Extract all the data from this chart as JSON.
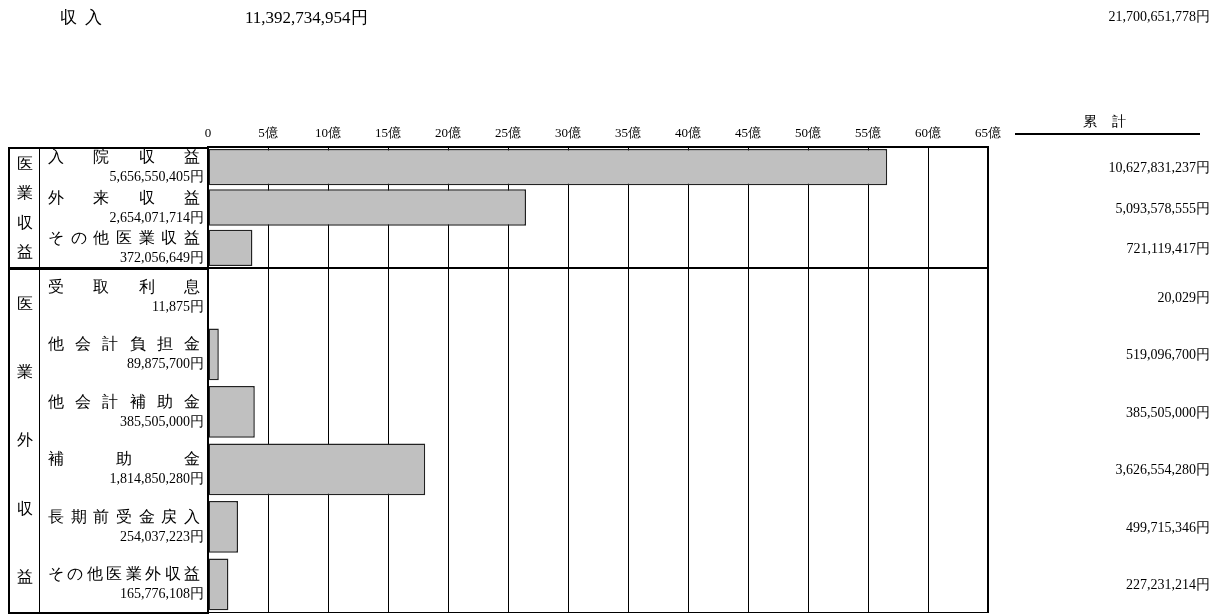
{
  "chart_data": [
    {
      "type": "bar",
      "orientation": "horizontal",
      "title": "収 入",
      "subtitle": "11,392,734,954円",
      "ylabel": "医業収益",
      "categories": [
        "入院収益",
        "外来収益",
        "その他医業収益"
      ],
      "values": [
        56.6,
        26.5,
        3.7
      ],
      "color": "#c0c0c0",
      "xlim": [
        0,
        65
      ],
      "xticks": [
        0,
        {
          "value": 5,
          "label": "5億"
        },
        {
          "value": 10,
          "label": "10億"
        },
        {
          "value": 15,
          "label": "15億"
        },
        {
          "value": 20,
          "label": "20億"
        },
        {
          "value": 25,
          "label": "25億"
        },
        {
          "value": 30,
          "label": "30億"
        },
        {
          "value": 35,
          "label": "35億"
        },
        {
          "value": 40,
          "label": "40億"
        },
        {
          "value": 45,
          "label": "45億"
        },
        {
          "value": 50,
          "label": "50億"
        },
        {
          "value": 55,
          "label": "55億"
        },
        {
          "value": 60,
          "label": "60億"
        },
        {
          "value": 65,
          "label": "65億"
        }
      ],
      "grid": "x",
      "annotations": [
        "21,700,651,778円",
        "累 計",
        "5,656,550,405円",
        "10,627,831,237円",
        "2,654,071,714円",
        "5,093,578,555円",
        "372,056,649円",
        "721,119,417円"
      ]
    },
    {
      "type": "bar",
      "orientation": "horizontal",
      "ylabel": "医業外収益",
      "tick_labels": "y",
      "categories": [
        "受取利息",
        "他会計負担金",
        "他会計補助金",
        "補助金",
        "長期前受金戻入",
        "その他医業外収益"
      ],
      "values": [
        0,
        0.9,
        3.9,
        18.1,
        2.5,
        1.7
      ],
      "color": "#c0c0c0",
      "xlim": [
        0,
        65
      ],
      "grid": "x",
      "annotations": [
        "11,875円",
        "20,029円",
        "89,875,700円",
        "519,096,700円",
        "385,505,000円",
        "385,505,000円",
        "1,814,850,280円",
        "3,626,554,280円",
        "254,037,223円",
        "499,715,346円",
        "165,776,108円",
        "227,231,214円"
      ]
    }
  ]
}
